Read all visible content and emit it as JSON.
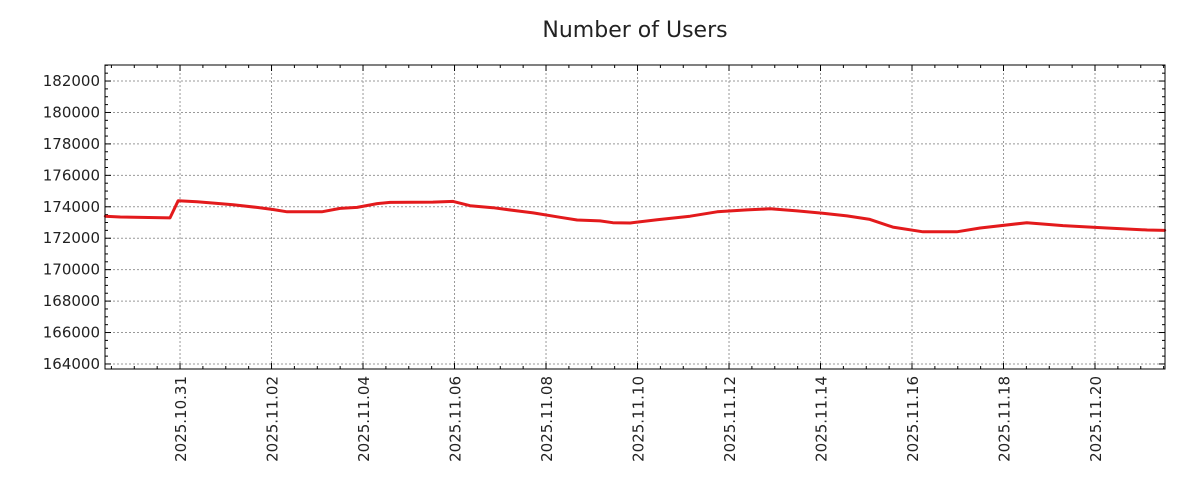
{
  "chart_data": {
    "type": "line",
    "title": "Number of Users",
    "xlabel": "",
    "ylabel": "",
    "x_unit": "days since 2025.10.31",
    "xlim": [
      -1.64,
      21.53
    ],
    "ylim": [
      163680,
      183020
    ],
    "grid": true,
    "x_ticks": [
      {
        "value": 0,
        "label": "2025.10.31"
      },
      {
        "value": 2,
        "label": "2025.11.02"
      },
      {
        "value": 4,
        "label": "2025.11.04"
      },
      {
        "value": 6,
        "label": "2025.11.06"
      },
      {
        "value": 8,
        "label": "2025.11.08"
      },
      {
        "value": 10,
        "label": "2025.11.10"
      },
      {
        "value": 12,
        "label": "2025.11.12"
      },
      {
        "value": 14,
        "label": "2025.11.14"
      },
      {
        "value": 16,
        "label": "2025.11.16"
      },
      {
        "value": 18,
        "label": "2025.11.18"
      },
      {
        "value": 20,
        "label": "2025.11.20"
      }
    ],
    "y_ticks": [
      {
        "value": 164000,
        "label": "164000"
      },
      {
        "value": 166000,
        "label": "166000"
      },
      {
        "value": 168000,
        "label": "168000"
      },
      {
        "value": 170000,
        "label": "170000"
      },
      {
        "value": 172000,
        "label": "172000"
      },
      {
        "value": 174000,
        "label": "174000"
      },
      {
        "value": 176000,
        "label": "176000"
      },
      {
        "value": 178000,
        "label": "178000"
      },
      {
        "value": 180000,
        "label": "180000"
      },
      {
        "value": 182000,
        "label": "182000"
      }
    ],
    "series": [
      {
        "name": "Number of Users",
        "color": "#e31a1c",
        "x": [
          -1.64,
          -1.31,
          -0.22,
          -0.04,
          0.37,
          0.77,
          1.16,
          1.68,
          2.03,
          2.34,
          3.1,
          3.5,
          3.87,
          4.31,
          4.59,
          5.53,
          5.97,
          6.34,
          6.84,
          7.37,
          7.72,
          8.31,
          8.68,
          9.18,
          9.46,
          9.84,
          10.43,
          11.15,
          11.74,
          12.39,
          12.9,
          13.49,
          14.05,
          14.58,
          15.08,
          15.58,
          16.24,
          16.98,
          17.49,
          18.51,
          19.3,
          20.26,
          21.14,
          21.53
        ],
        "y": [
          173400,
          173350,
          173290,
          174390,
          174320,
          174220,
          174130,
          173960,
          173830,
          173680,
          173680,
          173900,
          173960,
          174200,
          174280,
          174300,
          174340,
          174070,
          173940,
          173740,
          173610,
          173330,
          173160,
          173100,
          172990,
          172970,
          173180,
          173400,
          173680,
          173800,
          173870,
          173740,
          173590,
          173420,
          173200,
          172710,
          172410,
          172410,
          172650,
          172990,
          172800,
          172650,
          172520,
          172500
        ]
      }
    ]
  }
}
